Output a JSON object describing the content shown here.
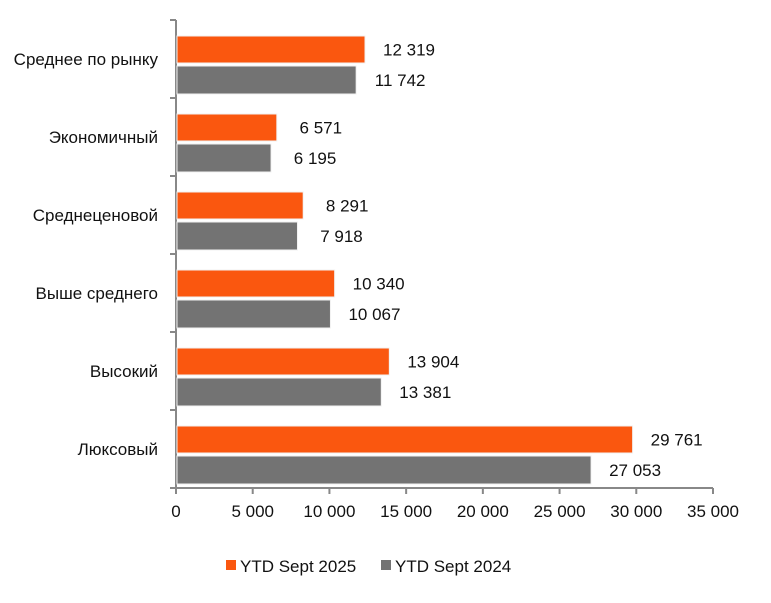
{
  "chart_data": {
    "type": "bar",
    "orientation": "horizontal",
    "categories": [
      "Среднее по рынку",
      "Экономичный",
      "Среднеценовой",
      "Выше среднего",
      "Высокий",
      "Люксовый"
    ],
    "series": [
      {
        "name": "YTD Sept 2025",
        "color": "#FA570F",
        "values": [
          12319,
          6571,
          8291,
          10340,
          13904,
          29761
        ],
        "labels": [
          "12 319",
          "6 571",
          "8 291",
          "10 340",
          "13 904",
          "29 761"
        ]
      },
      {
        "name": "YTD Sept 2024",
        "color": "#737373",
        "values": [
          11742,
          6195,
          7918,
          10067,
          13381,
          27053
        ],
        "labels": [
          "11 742",
          "6 195",
          "7 918",
          "10 067",
          "13 381",
          "27 053"
        ]
      }
    ],
    "xlim": [
      0,
      35000
    ],
    "xticks": [
      0,
      5000,
      10000,
      15000,
      20000,
      25000,
      30000,
      35000
    ],
    "xtick_labels": [
      "0",
      "5 000",
      "10 000",
      "15 000",
      "20 000",
      "25 000",
      "30 000",
      "35 000"
    ],
    "grid": false,
    "legend_position": "bottom"
  }
}
